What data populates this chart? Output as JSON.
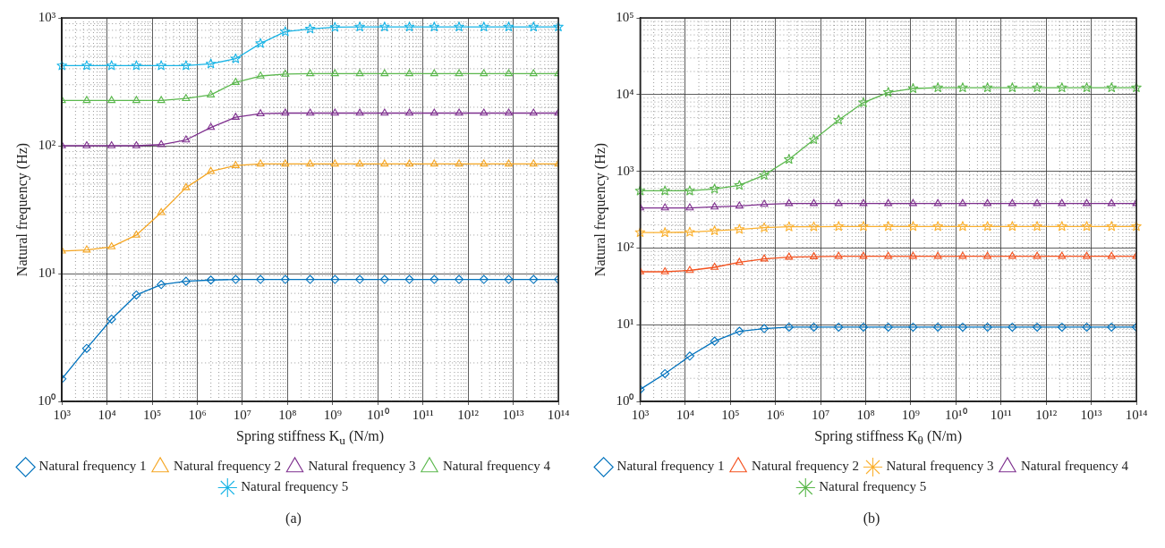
{
  "chart_data": [
    {
      "type": "line",
      "title": "(a)",
      "xlabel": "Spring stiffness K$_{u}$ (N/m)",
      "ylabel": "Natural frequency (Hz)",
      "log": "xy",
      "grid": true,
      "legend": "bottom",
      "x": [
        1000,
        3548,
        12589,
        44668,
        158489,
        562341,
        1995262,
        7079458,
        25118864,
        89125094,
        316227766,
        1122018454,
        3981071706,
        14125375446,
        50118723363,
        177827941004,
        630957344480,
        2238721138568,
        7943282347243,
        28183829312645,
        100000000000000
      ],
      "xlim": [
        1000,
        100000000000000
      ],
      "xticks": [
        {
          "value": 1000,
          "label": "10³"
        },
        {
          "value": 10000,
          "label": "10⁴"
        },
        {
          "value": 100000,
          "label": "10⁵"
        },
        {
          "value": 1000000,
          "label": "10⁶"
        },
        {
          "value": 10000000,
          "label": "10⁷"
        },
        {
          "value": 100000000,
          "label": "10⁸"
        },
        {
          "value": 1000000000,
          "label": "10⁹"
        },
        {
          "value": 10000000000,
          "label": "10¹⁰"
        },
        {
          "value": 100000000000,
          "label": "10¹¹"
        },
        {
          "value": 1000000000000,
          "label": "10¹²"
        },
        {
          "value": 10000000000000,
          "label": "10¹³"
        },
        {
          "value": 100000000000000,
          "label": "10¹⁴"
        }
      ],
      "ylim": [
        1,
        1000
      ],
      "yticks": [
        {
          "value": 1,
          "label": "10⁰"
        },
        {
          "value": 10,
          "label": "10¹"
        },
        {
          "value": 100,
          "label": "10²"
        },
        {
          "value": 1000,
          "label": "10³"
        }
      ],
      "series": [
        {
          "name": "Natural frequency 1",
          "color": "#0072bd",
          "marker": "diamond",
          "values": [
            1.5,
            2.6,
            4.4,
            6.8,
            8.2,
            8.7,
            8.9,
            9,
            9,
            9,
            9,
            9,
            9,
            9,
            9,
            9,
            9,
            9,
            9,
            9,
            9
          ]
        },
        {
          "name": "Natural frequency 2",
          "color": "#f5a623",
          "marker": "triangle",
          "values": [
            15,
            15.3,
            16.2,
            20,
            30,
            47,
            63,
            70,
            72,
            72,
            72,
            72,
            72,
            72,
            72,
            72,
            72,
            72,
            72,
            72,
            72
          ]
        },
        {
          "name": "Natural frequency 3",
          "color": "#7e2f8e",
          "marker": "triangle",
          "values": [
            100,
            100,
            100,
            100,
            102,
            111,
            139,
            167,
            178,
            180,
            180,
            180,
            180,
            180,
            180,
            180,
            180,
            180,
            180,
            180,
            180
          ]
        },
        {
          "name": "Natural frequency 4",
          "color": "#5bb84d",
          "marker": "triangle",
          "values": [
            226,
            226,
            226,
            226,
            226,
            234,
            250,
            313,
            351,
            363,
            366,
            366,
            366,
            366,
            366,
            366,
            366,
            366,
            366,
            366,
            366
          ]
        },
        {
          "name": "Natural frequency 5",
          "color": "#18b4e6",
          "marker": "star",
          "values": [
            423,
            423,
            423,
            423,
            423,
            423,
            437,
            479,
            631,
            780,
            820,
            845,
            850,
            850,
            850,
            850,
            850,
            850,
            850,
            850,
            850
          ]
        }
      ]
    },
    {
      "type": "line",
      "title": "(b)",
      "xlabel": "Spring stiffness K$_{θ}$ (N/m)",
      "ylabel": "Natural frequency (Hz)",
      "log": "xy",
      "grid": true,
      "legend": "bottom",
      "x": [
        1000,
        3548,
        12589,
        44668,
        158489,
        562341,
        1995262,
        7079458,
        25118864,
        89125094,
        316227766,
        1122018454,
        3981071706,
        14125375446,
        50118723363,
        177827941004,
        630957344480,
        2238721138568,
        7943282347243,
        28183829312645,
        100000000000000
      ],
      "xlim": [
        1000,
        100000000000000
      ],
      "xticks": [
        {
          "value": 1000,
          "label": "10³"
        },
        {
          "value": 10000,
          "label": "10⁴"
        },
        {
          "value": 100000,
          "label": "10⁵"
        },
        {
          "value": 1000000,
          "label": "10⁶"
        },
        {
          "value": 10000000,
          "label": "10⁷"
        },
        {
          "value": 100000000,
          "label": "10⁸"
        },
        {
          "value": 1000000000,
          "label": "10⁹"
        },
        {
          "value": 10000000000,
          "label": "10¹⁰"
        },
        {
          "value": 100000000000,
          "label": "10¹¹"
        },
        {
          "value": 1000000000000,
          "label": "10¹²"
        },
        {
          "value": 10000000000000,
          "label": "10¹³"
        },
        {
          "value": 100000000000000,
          "label": "10¹⁴"
        }
      ],
      "ylim": [
        1,
        100000
      ],
      "yticks": [
        {
          "value": 1,
          "label": "10⁰"
        },
        {
          "value": 10,
          "label": "10¹"
        },
        {
          "value": 100,
          "label": "10²"
        },
        {
          "value": 1000,
          "label": "10³"
        },
        {
          "value": 10000,
          "label": "10⁴"
        },
        {
          "value": 100000,
          "label": "10⁵"
        }
      ],
      "series": [
        {
          "name": "Natural frequency 1",
          "color": "#0072bd",
          "marker": "diamond",
          "values": [
            1.43,
            2.3,
            3.9,
            6.1,
            8.2,
            8.9,
            9.3,
            9.3,
            9.3,
            9.3,
            9.3,
            9.3,
            9.3,
            9.3,
            9.3,
            9.3,
            9.3,
            9.3,
            9.3,
            9.3,
            9.3
          ]
        },
        {
          "name": "Natural frequency 2",
          "color": "#f4511e",
          "marker": "triangle",
          "values": [
            49,
            49,
            51,
            56,
            65,
            72,
            76,
            77,
            78,
            78,
            78,
            78,
            78,
            78,
            78,
            78,
            78,
            78,
            78,
            78,
            78
          ]
        },
        {
          "name": "Natural frequency 3",
          "color": "#fbb130",
          "marker": "star",
          "values": [
            159,
            159,
            161,
            168,
            175,
            184,
            189,
            189,
            191,
            191,
            191,
            191,
            191,
            191,
            191,
            191,
            191,
            191,
            191,
            191,
            191
          ]
        },
        {
          "name": "Natural frequency 4",
          "color": "#7e2f8e",
          "marker": "triangle",
          "values": [
            333,
            333,
            333,
            343,
            353,
            371,
            380,
            380,
            380,
            380,
            380,
            380,
            380,
            380,
            380,
            380,
            380,
            380,
            380,
            380,
            380
          ]
        },
        {
          "name": "Natural frequency 5",
          "color": "#5bb84d",
          "marker": "star",
          "values": [
            556,
            556,
            556,
            589,
            655,
            891,
            1430,
            2590,
            4670,
            7850,
            10700,
            12000,
            12300,
            12300,
            12300,
            12300,
            12300,
            12300,
            12300,
            12300,
            12300
          ]
        }
      ]
    }
  ]
}
